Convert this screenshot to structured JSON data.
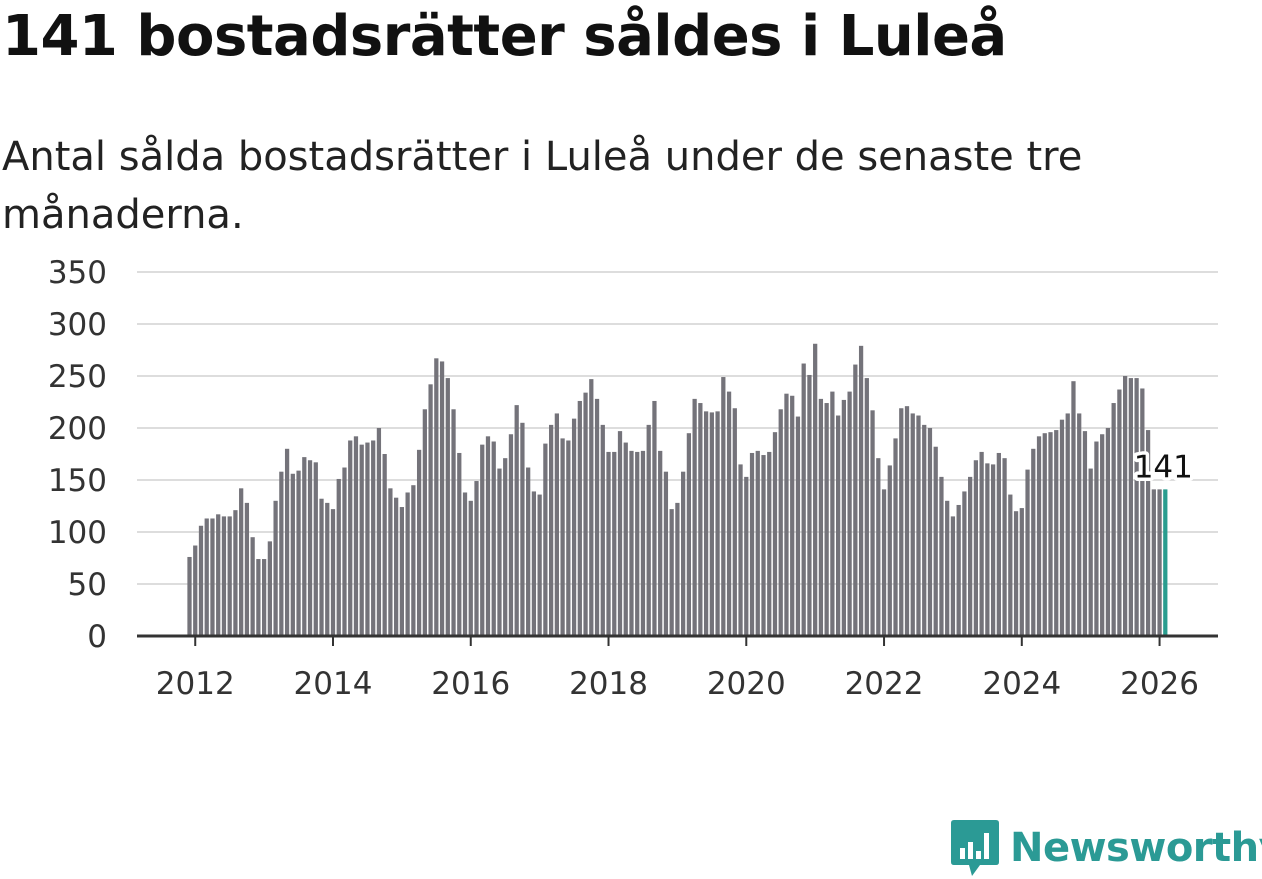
{
  "title": "141 bostadsrätter såldes i Luleå",
  "subtitle": "Antal sålda bostadsrätter i Luleå under de senaste tre månaderna.",
  "brand": {
    "name": "Newsworthy",
    "color": "#2b9a95",
    "icon": "bar-chart-logo-icon"
  },
  "chart_data": {
    "type": "bar",
    "title": "141 bostadsrätter såldes i Luleå",
    "xlabel": "",
    "ylabel": "",
    "ylim": [
      0,
      350
    ],
    "y_ticks": [
      "0",
      "50",
      "100",
      "150",
      "200",
      "250",
      "300",
      "350"
    ],
    "x_ticks": [
      "2012",
      "2014",
      "2016",
      "2018",
      "2020",
      "2022",
      "2024",
      "2026"
    ],
    "x_start": "2011-12",
    "x_end": "2026-02",
    "bar_color": "#74737a",
    "highlight_color": "#2a9d8f",
    "grid": true,
    "annotation": {
      "text": "141",
      "index": 170
    },
    "values": [
      76,
      87,
      106,
      113,
      113,
      117,
      115,
      115,
      121,
      142,
      128,
      95,
      74,
      74,
      91,
      130,
      158,
      180,
      156,
      159,
      172,
      169,
      167,
      132,
      128,
      122,
      151,
      162,
      188,
      192,
      184,
      186,
      188,
      200,
      175,
      142,
      133,
      124,
      138,
      145,
      179,
      218,
      242,
      267,
      264,
      248,
      218,
      176,
      138,
      130,
      149,
      184,
      192,
      187,
      161,
      171,
      194,
      222,
      205,
      162,
      139,
      136,
      185,
      203,
      214,
      190,
      188,
      209,
      226,
      234,
      247,
      228,
      203,
      177,
      177,
      197,
      186,
      178,
      177,
      178,
      203,
      226,
      178,
      158,
      122,
      128,
      158,
      195,
      228,
      224,
      216,
      215,
      216,
      249,
      235,
      219,
      165,
      153,
      176,
      178,
      174,
      177,
      196,
      218,
      233,
      231,
      211,
      262,
      251,
      281,
      228,
      224,
      235,
      212,
      227,
      235,
      261,
      279,
      248,
      217,
      171,
      141,
      164,
      190,
      219,
      221,
      214,
      212,
      203,
      200,
      182,
      153,
      130,
      115,
      126,
      139,
      153,
      169,
      177,
      166,
      165,
      176,
      171,
      136,
      120,
      123,
      160,
      180,
      192,
      195,
      196,
      198,
      208,
      214,
      245,
      214,
      197,
      161,
      187,
      194,
      200,
      224,
      237,
      250,
      248,
      248,
      238,
      198,
      141,
      141,
      141
    ]
  }
}
